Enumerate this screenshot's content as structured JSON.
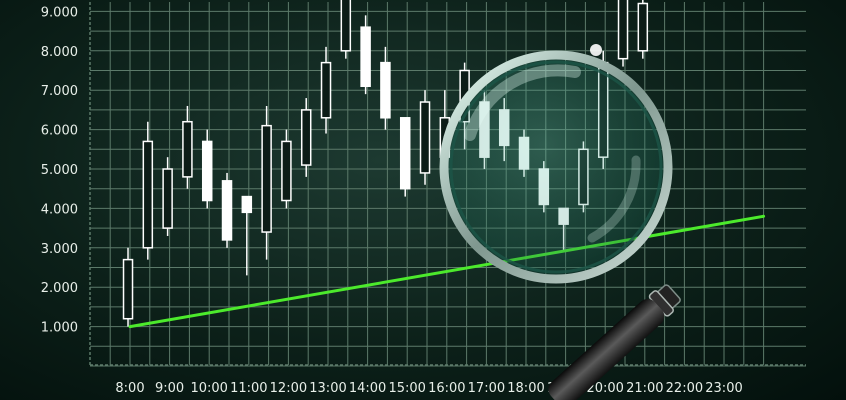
{
  "chart_data": {
    "type": "candlestick",
    "title": "",
    "xlabel": "",
    "ylabel": "",
    "ylim": [
      0,
      9.3
    ],
    "grid": true,
    "y_ticks": [
      "1.000",
      "2.000",
      "3.000",
      "4.000",
      "5.000",
      "6.000",
      "7.000",
      "8.000",
      "9.000"
    ],
    "x_ticks": [
      "8:00",
      "9:00",
      "10:00",
      "11:00",
      "12:00",
      "13:00",
      "14:00",
      "15:00",
      "16:00",
      "17:00",
      "18:00",
      "19:00",
      "20:00",
      "21:00",
      "22:00",
      "23:00"
    ],
    "candles": [
      {
        "x": 7.95,
        "open": 1.2,
        "close": 2.7,
        "low": 1.0,
        "high": 3.0
      },
      {
        "x": 8.45,
        "open": 3.0,
        "close": 5.7,
        "low": 2.7,
        "high": 6.2
      },
      {
        "x": 8.95,
        "open": 3.5,
        "close": 5.0,
        "low": 3.3,
        "high": 5.3
      },
      {
        "x": 9.45,
        "open": 4.8,
        "close": 6.2,
        "low": 4.5,
        "high": 6.6
      },
      {
        "x": 9.95,
        "open": 5.7,
        "close": 4.2,
        "low": 4.0,
        "high": 6.0
      },
      {
        "x": 10.45,
        "open": 4.7,
        "close": 3.2,
        "low": 3.0,
        "high": 4.9
      },
      {
        "x": 10.95,
        "open": 4.3,
        "close": 3.9,
        "low": 2.3,
        "high": 4.3
      },
      {
        "x": 11.45,
        "open": 3.4,
        "close": 6.1,
        "low": 2.7,
        "high": 6.6
      },
      {
        "x": 11.95,
        "open": 4.2,
        "close": 5.7,
        "low": 4.0,
        "high": 6.0
      },
      {
        "x": 12.45,
        "open": 5.1,
        "close": 6.5,
        "low": 4.8,
        "high": 6.8
      },
      {
        "x": 12.95,
        "open": 6.3,
        "close": 7.7,
        "low": 5.9,
        "high": 8.1
      },
      {
        "x": 13.45,
        "open": 8.0,
        "close": 9.4,
        "low": 7.8,
        "high": 9.6
      },
      {
        "x": 13.95,
        "open": 8.6,
        "close": 7.1,
        "low": 6.9,
        "high": 8.9
      },
      {
        "x": 14.45,
        "open": 7.7,
        "close": 6.3,
        "low": 6.0,
        "high": 8.1
      },
      {
        "x": 14.95,
        "open": 6.3,
        "close": 4.5,
        "low": 4.3,
        "high": 6.3
      },
      {
        "x": 15.45,
        "open": 4.9,
        "close": 6.7,
        "low": 4.6,
        "high": 7.0
      },
      {
        "x": 15.95,
        "open": 5.3,
        "close": 6.3,
        "low": 5.0,
        "high": 7.0
      },
      {
        "x": 16.45,
        "open": 6.2,
        "close": 7.5,
        "low": 5.5,
        "high": 7.7
      },
      {
        "x": 16.95,
        "open": 6.7,
        "close": 5.3,
        "low": 5.0,
        "high": 7.0
      },
      {
        "x": 17.45,
        "open": 6.5,
        "close": 5.6,
        "low": 5.2,
        "high": 6.8
      },
      {
        "x": 17.95,
        "open": 5.8,
        "close": 5.0,
        "low": 4.8,
        "high": 6.0
      },
      {
        "x": 18.45,
        "open": 5.0,
        "close": 4.1,
        "low": 3.9,
        "high": 5.2
      },
      {
        "x": 18.95,
        "open": 4.0,
        "close": 3.6,
        "low": 2.9,
        "high": 4.0
      },
      {
        "x": 19.45,
        "open": 4.1,
        "close": 5.5,
        "low": 3.9,
        "high": 5.7
      },
      {
        "x": 19.95,
        "open": 5.3,
        "close": 7.7,
        "low": 5.0,
        "high": 8.0
      },
      {
        "x": 20.45,
        "open": 7.8,
        "close": 9.5,
        "low": 7.6,
        "high": 9.7
      },
      {
        "x": 20.95,
        "open": 8.0,
        "close": 9.2,
        "low": 7.8,
        "high": 9.4
      }
    ],
    "trendline": {
      "x": [
        8.0,
        24.0
      ],
      "y": [
        1.0,
        3.8
      ]
    },
    "colors": {
      "grid": "#5c7a6a",
      "candle": "#ffffff",
      "trend": "#4cea2c",
      "lens": "#8fe0c8"
    }
  },
  "icons": {
    "magnifier": "magnifying-glass-icon"
  }
}
